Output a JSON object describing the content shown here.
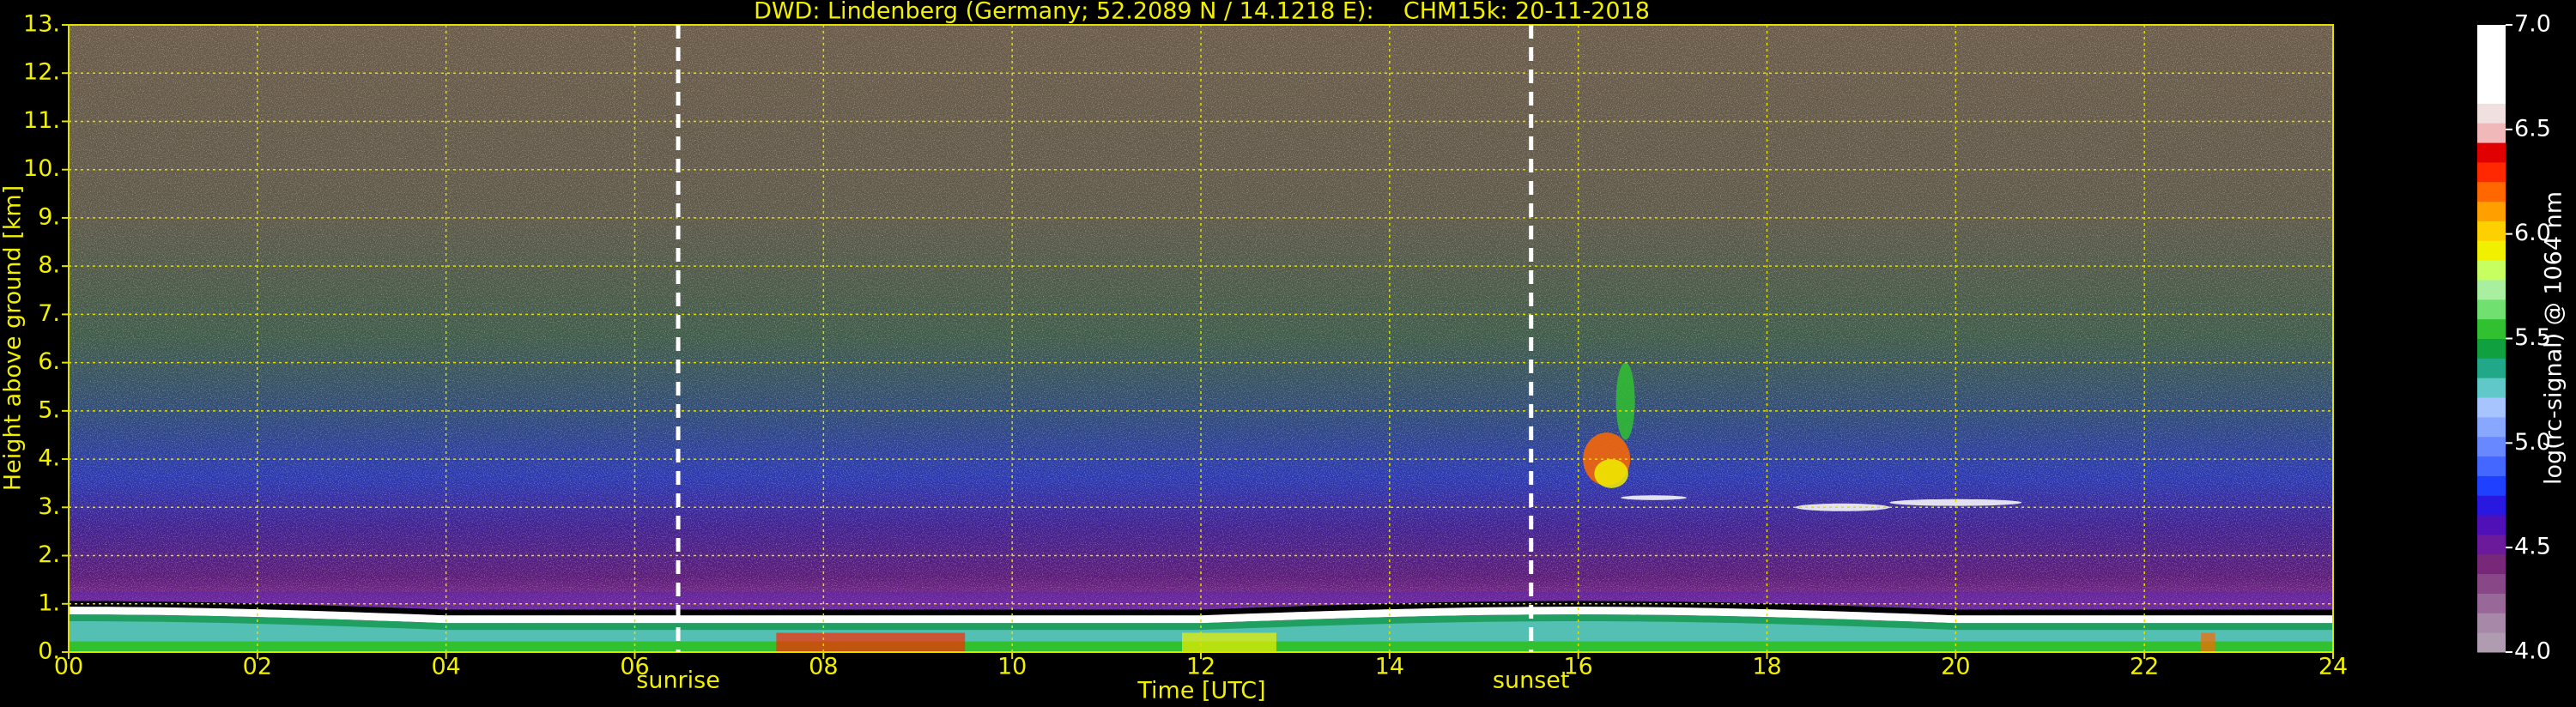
{
  "chart_data": {
    "type": "heatmap",
    "title": "DWD: Lindenberg (Germany; 52.2089 N / 14.1218 E):    CHM15k: 20-11-2018",
    "xlabel": "Time [UTC]",
    "ylabel": "Height above ground [km]",
    "xlim": [
      0,
      24
    ],
    "ylim": [
      0,
      13
    ],
    "xticks": [
      {
        "value": 0,
        "label": "00"
      },
      {
        "value": 2,
        "label": "02"
      },
      {
        "value": 4,
        "label": "04"
      },
      {
        "value": 6,
        "label": "06"
      },
      {
        "value": 8,
        "label": "08"
      },
      {
        "value": 10,
        "label": "10"
      },
      {
        "value": 12,
        "label": "12"
      },
      {
        "value": 14,
        "label": "14"
      },
      {
        "value": 16,
        "label": "16"
      },
      {
        "value": 18,
        "label": "18"
      },
      {
        "value": 20,
        "label": "20"
      },
      {
        "value": 22,
        "label": "22"
      },
      {
        "value": 24,
        "label": "24"
      }
    ],
    "yticks": [
      {
        "value": 0,
        "label": "0."
      },
      {
        "value": 1,
        "label": "1."
      },
      {
        "value": 2,
        "label": "2."
      },
      {
        "value": 3,
        "label": "3."
      },
      {
        "value": 4,
        "label": "4."
      },
      {
        "value": 5,
        "label": "5."
      },
      {
        "value": 6,
        "label": "6."
      },
      {
        "value": 7,
        "label": "7."
      },
      {
        "value": 8,
        "label": "8."
      },
      {
        "value": 9,
        "label": "9."
      },
      {
        "value": 10,
        "label": "10."
      },
      {
        "value": 11,
        "label": "11."
      },
      {
        "value": 12,
        "label": "12."
      },
      {
        "value": 13,
        "label": "13."
      }
    ],
    "grid": true,
    "annotations": [
      {
        "text": "sunrise",
        "x": 6.46
      },
      {
        "text": "sunset",
        "x": 15.5
      }
    ],
    "colorbar": {
      "label": "log(rc-signal) @ 1064 nm",
      "clim": [
        4.0,
        7.0
      ],
      "ticks": [
        {
          "value": 4.0,
          "label": "4.0"
        },
        {
          "value": 4.5,
          "label": "4.5"
        },
        {
          "value": 5.0,
          "label": "5.0"
        },
        {
          "value": 5.5,
          "label": "5.5"
        },
        {
          "value": 6.0,
          "label": "6.0"
        },
        {
          "value": 6.5,
          "label": "6.5"
        },
        {
          "value": 7.0,
          "label": "7.0"
        }
      ],
      "colors": [
        "#b09cb0",
        "#a888a8",
        "#986898",
        "#884888",
        "#782878",
        "#6a1a9a",
        "#5010b8",
        "#2818e0",
        "#2040ff",
        "#4468ff",
        "#6888ff",
        "#88a8ff",
        "#a8c4ff",
        "#60c8c8",
        "#20a888",
        "#10a040",
        "#30c030",
        "#70e070",
        "#a8f0a0",
        "#c8ff60",
        "#f0f000",
        "#ffd000",
        "#ffa000",
        "#ff6800",
        "#ff2800",
        "#e00000",
        "#f0b8b8",
        "#f0e0e0",
        "#ffffff",
        "#ffffff",
        "#ffffff",
        "#ffffff"
      ]
    }
  }
}
